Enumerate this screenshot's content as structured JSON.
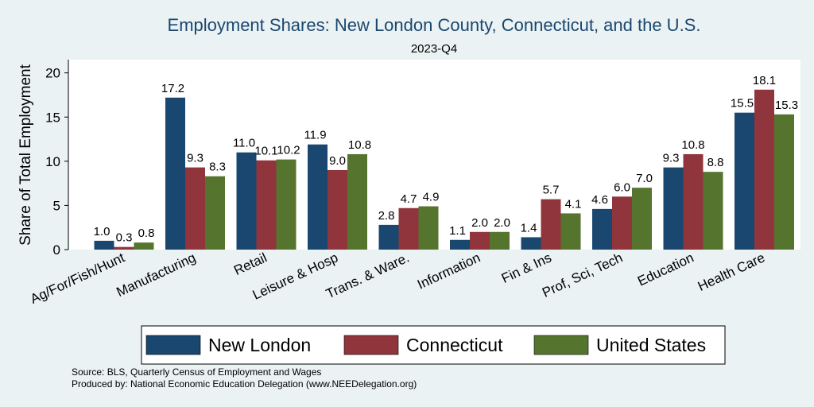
{
  "chart_data": {
    "type": "bar",
    "title": "Employment Shares: New London County, Connecticut, and the U.S.",
    "subtitle": "2023-Q4",
    "xlabel": "",
    "ylabel": "Share of Total Employment",
    "ylim": [
      0,
      21.5
    ],
    "yticks": [
      0,
      5,
      10,
      15,
      20
    ],
    "grid": false,
    "legend_position": "bottom",
    "categories": [
      "Ag/For/Fish/Hunt",
      "Manufacturing",
      "Retail",
      "Leisure & Hosp",
      "Trans. & Ware.",
      "Information",
      "Fin & Ins",
      "Prof, Sci, Tech",
      "Education",
      "Health Care"
    ],
    "series": [
      {
        "name": "New London",
        "color": "#1a476f",
        "values": [
          1.0,
          17.2,
          11.0,
          11.9,
          2.8,
          1.1,
          1.4,
          4.6,
          9.3,
          15.5
        ],
        "labels": [
          "1.0",
          "17.2",
          "11.0",
          "11.9",
          "2.8",
          "1.1",
          "1.4",
          "4.6",
          "9.3",
          "15.5"
        ]
      },
      {
        "name": "Connecticut",
        "color": "#90353b",
        "values": [
          0.3,
          9.3,
          10.1,
          9.0,
          4.7,
          2.0,
          5.7,
          6.0,
          10.8,
          18.1
        ],
        "labels": [
          "0.3",
          "9.3",
          "10.1",
          "9.0",
          "4.7",
          "2.0",
          "5.7",
          "6.0",
          "10.8",
          "18.1"
        ]
      },
      {
        "name": "United States",
        "color": "#55752f",
        "values": [
          0.8,
          8.3,
          10.2,
          10.8,
          4.9,
          2.0,
          4.1,
          7.0,
          8.8,
          15.3
        ],
        "labels": [
          "0.8",
          "8.3",
          "10.2",
          "10.8",
          "4.9",
          "2.0",
          "4.1",
          "7.0",
          "8.8",
          "15.3"
        ]
      }
    ],
    "notes": [
      "Source: BLS, Quarterly Census of Employment and Wages",
      "Produced by: National Economic Education Delegation (www.NEEDelegation.org)"
    ]
  }
}
